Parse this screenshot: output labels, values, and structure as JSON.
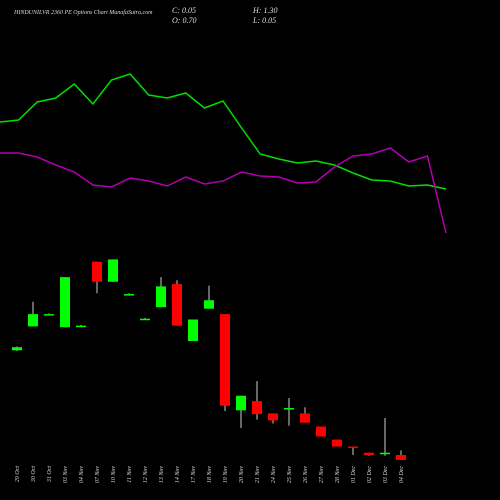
{
  "chart_data": {
    "type": "candlestick",
    "title": "HINDUNILVR 2360 PE Options Chart MunafaSutra.com",
    "stats": [
      "C: 0.05",
      "H: 1.30",
      "O: 0.70",
      "L: 0.05"
    ],
    "categories": [
      "29 Oct",
      "30 Oct",
      "31 Oct",
      "03 Nov",
      "04 Nov",
      "07 Nov",
      "10 Nov",
      "11 Nov",
      "12 Nov",
      "13 Nov",
      "14 Nov",
      "17 Nov",
      "18 Nov",
      "19 Nov",
      "20 Nov",
      "21 Nov",
      "24 Nov",
      "25 Nov",
      "26 Nov",
      "27 Nov",
      "28 Nov",
      "01 Dec",
      "02 Dec",
      "03 Dec",
      "04 Dec"
    ],
    "open": [
      14.3,
      17.4,
      19.0,
      17.3,
      17.5,
      25.8,
      23.2,
      21.6,
      18.4,
      19.9,
      22.9,
      15.5,
      19.7,
      19.0,
      6.5,
      7.7,
      6.1,
      6.6,
      6.1,
      4.4,
      2.7,
      1.8,
      1.0,
      0.8,
      0.7
    ],
    "high": [
      14.8,
      20.6,
      19.1,
      23.8,
      17.6,
      25.8,
      26.1,
      21.7,
      18.5,
      23.8,
      23.4,
      18.3,
      22.7,
      19.0,
      8.4,
      10.3,
      6.1,
      8.1,
      6.9,
      4.4,
      2.7,
      1.8,
      1.0,
      5.5,
      1.3
    ],
    "low": [
      14.2,
      17.4,
      18.9,
      17.3,
      17.4,
      21.7,
      23.2,
      21.5,
      18.3,
      19.9,
      17.5,
      15.5,
      19.7,
      6.4,
      4.2,
      5.3,
      4.8,
      4.5,
      4.9,
      3.1,
      1.8,
      0.7,
      0.6,
      0.6,
      0.05
    ],
    "close": [
      14.7,
      19.0,
      19.0,
      23.8,
      17.5,
      23.2,
      26.1,
      21.6,
      18.4,
      22.6,
      17.5,
      18.3,
      20.8,
      7.1,
      8.4,
      6.0,
      5.2,
      6.8,
      4.9,
      3.1,
      1.8,
      1.6,
      0.7,
      1.0,
      0.05
    ],
    "up_color": "#00ff00",
    "down_color": "#ff0000",
    "ylim": [
      0,
      30
    ],
    "lines": [
      {
        "color": "#00e000",
        "values": [
          64,
          65,
          74,
          76,
          83,
          73,
          85,
          88,
          77.5,
          76,
          78.5,
          71,
          74.5,
          61,
          48,
          45.5,
          43.5,
          44.5,
          42.5,
          38.5,
          35,
          34.5,
          32,
          32.5,
          30.5
        ]
      },
      {
        "color": "#b000b0",
        "values": [
          48.5,
          48.5,
          46.5,
          42.5,
          39,
          32.5,
          31.5,
          36,
          34.5,
          32,
          36.5,
          33,
          34.5,
          39,
          37,
          36.5,
          33.5,
          34,
          41.5,
          47,
          48,
          51,
          44,
          47,
          8.5
        ]
      }
    ],
    "y2lim": [
      0,
      100
    ]
  }
}
